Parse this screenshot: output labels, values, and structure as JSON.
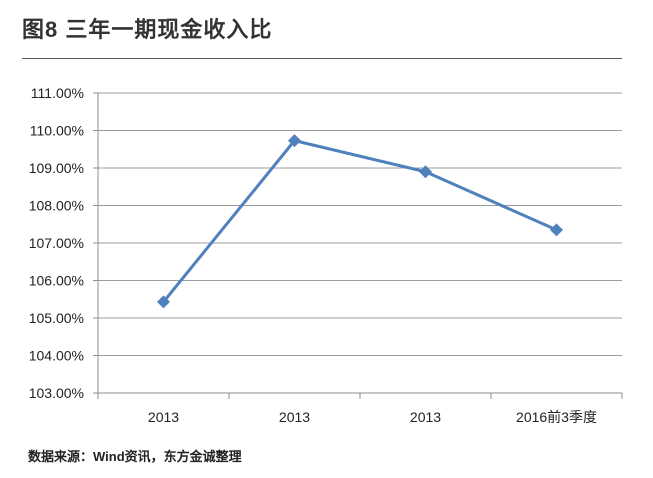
{
  "header": {
    "title": "图8  三年一期现金收入比"
  },
  "footer": {
    "source": "数据来源：Wind资讯，东方金诚整理"
  },
  "chart_data": {
    "type": "line",
    "categories": [
      "2013",
      "2013",
      "2013",
      "2016前3季度"
    ],
    "series": [
      {
        "values": [
          105.43,
          109.73,
          108.9,
          107.35
        ],
        "color": "#4f81bd"
      }
    ],
    "ylim": [
      103,
      111
    ],
    "yticks": [
      "103.00%",
      "104.00%",
      "105.00%",
      "106.00%",
      "107.00%",
      "108.00%",
      "109.00%",
      "110.00%",
      "111.00%"
    ],
    "grid": true,
    "legend": "none",
    "marker": "diamond"
  }
}
